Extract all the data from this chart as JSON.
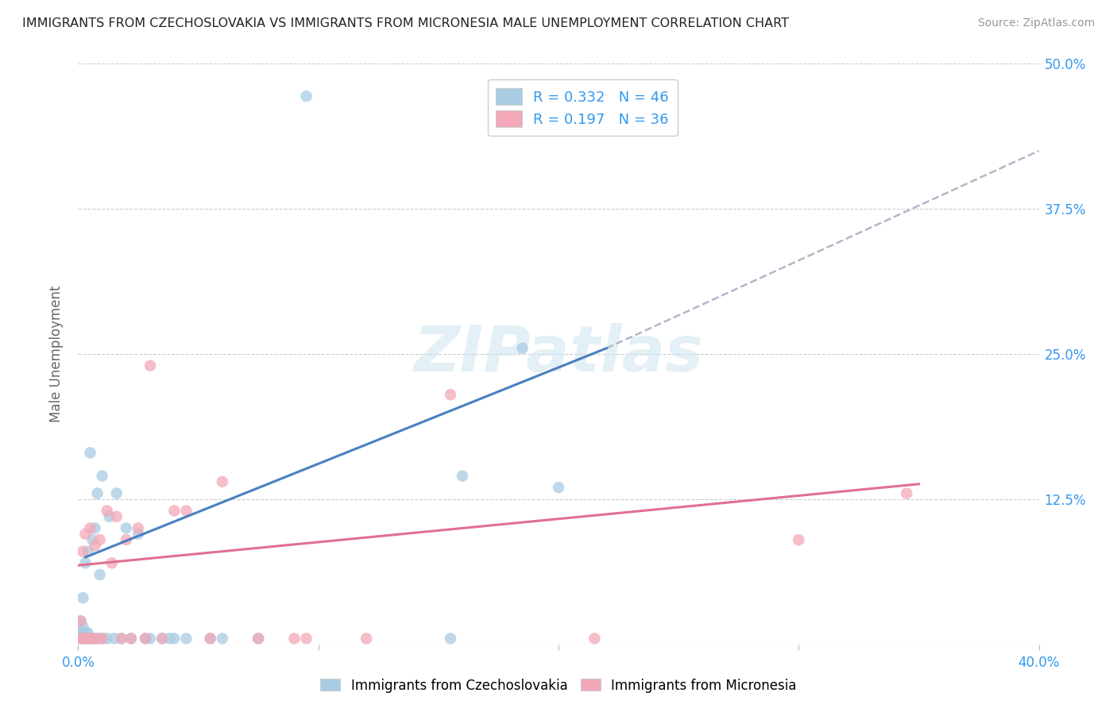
{
  "title": "IMMIGRANTS FROM CZECHOSLOVAKIA VS IMMIGRANTS FROM MICRONESIA MALE UNEMPLOYMENT CORRELATION CHART",
  "source": "Source: ZipAtlas.com",
  "ylabel": "Male Unemployment",
  "xlim": [
    0.0,
    0.4
  ],
  "ylim": [
    0.0,
    0.5
  ],
  "xtick_positions": [
    0.0,
    0.1,
    0.2,
    0.3,
    0.4
  ],
  "xtick_labels": [
    "0.0%",
    "",
    "",
    "",
    "40.0%"
  ],
  "ytick_positions": [
    0.0,
    0.125,
    0.25,
    0.375,
    0.5
  ],
  "ytick_labels": [
    "",
    "12.5%",
    "25.0%",
    "37.5%",
    "50.0%"
  ],
  "color_blue": "#a8cce4",
  "color_pink": "#f2a8b8",
  "line_blue": "#4a7fc1",
  "line_pink": "#e07090",
  "line_dashed_color": "#b0b8c8",
  "legend_text1": "R = 0.332   N = 46",
  "legend_text2": "R = 0.197   N = 36",
  "watermark": "ZIPatlas",
  "blue_label": "Immigrants from Czechoslovakia",
  "pink_label": "Immigrants from Micronesia",
  "blue_line_x": [
    0.003,
    0.22
  ],
  "blue_line_y": [
    0.075,
    0.255
  ],
  "dashed_line_x": [
    0.22,
    0.4
  ],
  "dashed_line_y": [
    0.255,
    0.425
  ],
  "pink_line_x": [
    0.0,
    0.35
  ],
  "pink_line_y": [
    0.068,
    0.138
  ],
  "blue_x": [
    0.001,
    0.001,
    0.001,
    0.002,
    0.002,
    0.002,
    0.002,
    0.003,
    0.003,
    0.003,
    0.004,
    0.004,
    0.004,
    0.005,
    0.005,
    0.006,
    0.006,
    0.007,
    0.007,
    0.008,
    0.008,
    0.009,
    0.01,
    0.01,
    0.012,
    0.013,
    0.015,
    0.016,
    0.018,
    0.02,
    0.022,
    0.025,
    0.028,
    0.03,
    0.035,
    0.038,
    0.04,
    0.045,
    0.055,
    0.06,
    0.075,
    0.095,
    0.155,
    0.16,
    0.185,
    0.2
  ],
  "blue_y": [
    0.005,
    0.01,
    0.02,
    0.005,
    0.01,
    0.015,
    0.04,
    0.005,
    0.01,
    0.07,
    0.005,
    0.01,
    0.08,
    0.005,
    0.165,
    0.005,
    0.09,
    0.005,
    0.1,
    0.005,
    0.13,
    0.06,
    0.005,
    0.145,
    0.005,
    0.11,
    0.005,
    0.13,
    0.005,
    0.1,
    0.005,
    0.095,
    0.005,
    0.005,
    0.005,
    0.005,
    0.005,
    0.005,
    0.005,
    0.005,
    0.005,
    0.472,
    0.005,
    0.145,
    0.255,
    0.135
  ],
  "pink_x": [
    0.001,
    0.001,
    0.002,
    0.002,
    0.003,
    0.003,
    0.004,
    0.005,
    0.005,
    0.006,
    0.007,
    0.008,
    0.009,
    0.01,
    0.012,
    0.014,
    0.016,
    0.018,
    0.02,
    0.022,
    0.025,
    0.028,
    0.03,
    0.035,
    0.04,
    0.045,
    0.055,
    0.06,
    0.075,
    0.09,
    0.095,
    0.12,
    0.155,
    0.215,
    0.3,
    0.345
  ],
  "pink_y": [
    0.005,
    0.02,
    0.005,
    0.08,
    0.005,
    0.095,
    0.005,
    0.005,
    0.1,
    0.005,
    0.085,
    0.005,
    0.09,
    0.005,
    0.115,
    0.07,
    0.11,
    0.005,
    0.09,
    0.005,
    0.1,
    0.005,
    0.24,
    0.005,
    0.115,
    0.115,
    0.005,
    0.14,
    0.005,
    0.005,
    0.005,
    0.005,
    0.215,
    0.005,
    0.09,
    0.13
  ]
}
